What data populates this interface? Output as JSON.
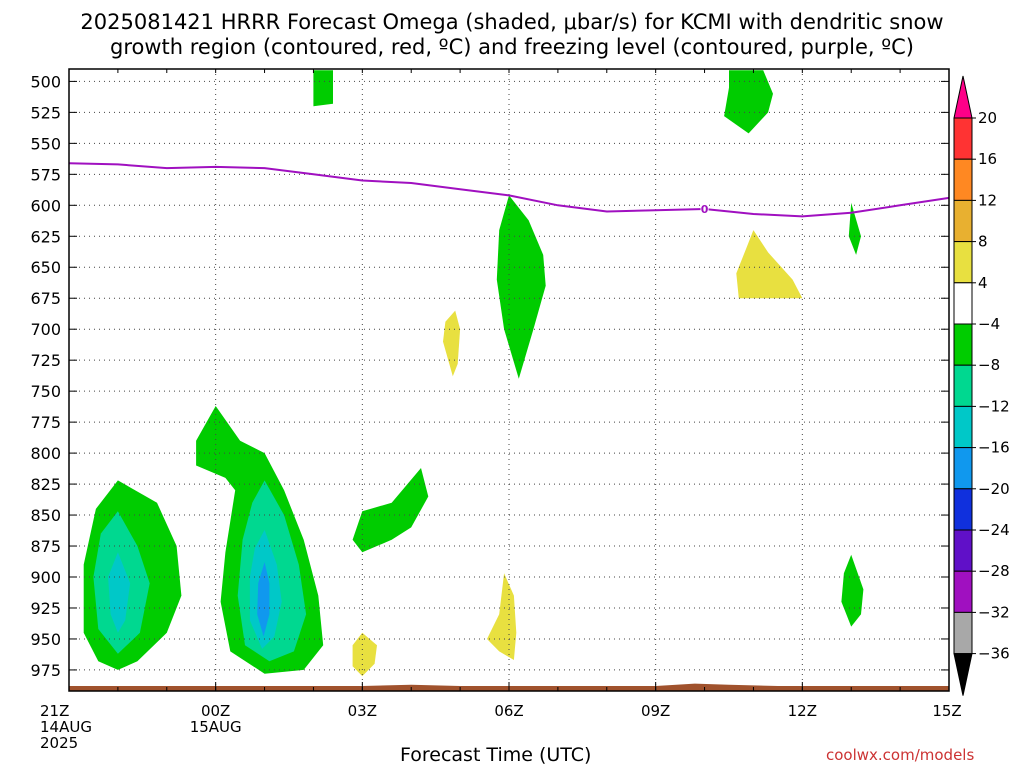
{
  "title_line1": "2025081421 HRRR Forecast Omega (shaded, μbar/s) for KCMI with dendritic snow",
  "title_line2": "growth region (contoured, red, ºC) and freezing level (contoured, purple, ºC)",
  "xlabel": "Forecast Time (UTC)",
  "watermark": "coolwx.com/models",
  "chart_data": {
    "type": "time-height contour",
    "title": "2025081421 HRRR Forecast Omega (shaded, μbar/s) for KCMI with dendritic snow growth region (contoured, red, ºC) and freezing level (contoured, purple, ºC)",
    "xlabel": "Forecast Time (UTC)",
    "y_ticks": [
      500,
      525,
      550,
      575,
      600,
      625,
      650,
      675,
      700,
      725,
      750,
      775,
      800,
      825,
      850,
      875,
      900,
      925,
      950,
      975
    ],
    "x_ticks": [
      {
        "hour": 0,
        "lines": [
          "21Z",
          "14AUG",
          "2025"
        ]
      },
      {
        "hour": 3,
        "lines": [
          "00Z",
          "15AUG"
        ]
      },
      {
        "hour": 6,
        "lines": [
          "03Z"
        ]
      },
      {
        "hour": 9,
        "lines": [
          "06Z"
        ]
      },
      {
        "hour": 12,
        "lines": [
          "09Z"
        ]
      },
      {
        "hour": 15,
        "lines": [
          "12Z"
        ]
      },
      {
        "hour": 18,
        "lines": [
          "15Z"
        ]
      }
    ],
    "x_range_hours": [
      0,
      18
    ],
    "y_range_hpa": [
      490,
      992
    ],
    "grid": true,
    "colorbar": {
      "labels": [
        "20",
        "16",
        "12",
        "8",
        "4",
        "-4",
        "-8",
        "-12",
        "-16",
        "-20",
        "-24",
        "-28",
        "-32",
        "-36"
      ],
      "colors": [
        "#ff0088",
        "#ff3333",
        "#ff8822",
        "#e8b030",
        "#e8e040",
        "#ffffff",
        "#00cc00",
        "#00d890",
        "#00c8c8",
        "#1098ee",
        "#1030dd",
        "#6010c8",
        "#a010c0",
        "#a8a8a8",
        "#000000"
      ]
    },
    "freezing_level": {
      "label": "0",
      "points": [
        [
          0,
          566
        ],
        [
          1,
          567
        ],
        [
          2,
          570
        ],
        [
          3,
          569
        ],
        [
          4,
          570
        ],
        [
          5,
          575
        ],
        [
          6,
          580
        ],
        [
          7,
          582
        ],
        [
          8,
          587
        ],
        [
          9,
          592
        ],
        [
          10,
          600
        ],
        [
          11,
          605
        ],
        [
          12,
          604
        ],
        [
          13,
          603
        ],
        [
          14,
          607
        ],
        [
          15,
          609
        ],
        [
          16,
          606
        ],
        [
          17,
          600
        ],
        [
          18,
          594
        ]
      ]
    },
    "omega_regions": [
      {
        "level": "-4 to -8",
        "points": [
          [
            5,
            491
          ],
          [
            5.4,
            491
          ],
          [
            5.4,
            518
          ],
          [
            5,
            520
          ]
        ]
      },
      {
        "level": "-4 to -8",
        "points": [
          [
            13.5,
            491
          ],
          [
            14.2,
            491
          ],
          [
            14.4,
            510
          ],
          [
            14.3,
            525
          ],
          [
            13.9,
            542
          ],
          [
            13.4,
            528
          ],
          [
            13.5,
            505
          ]
        ]
      },
      {
        "level": "-4 to -8",
        "points": [
          [
            9,
            592
          ],
          [
            9.4,
            612
          ],
          [
            9.7,
            640
          ],
          [
            9.75,
            665
          ],
          [
            9.5,
            700
          ],
          [
            9.2,
            740
          ],
          [
            8.9,
            700
          ],
          [
            8.75,
            660
          ],
          [
            8.8,
            620
          ]
        ]
      },
      {
        "level": "-4 to -8",
        "points": [
          [
            16,
            598
          ],
          [
            16.2,
            625
          ],
          [
            16.1,
            640
          ],
          [
            15.95,
            625
          ]
        ]
      },
      {
        "level": "4 to 8",
        "points": [
          [
            14,
            620
          ],
          [
            14.3,
            638
          ],
          [
            14.8,
            660
          ],
          [
            15,
            675
          ],
          [
            13.7,
            675
          ],
          [
            13.65,
            655
          ],
          [
            13.85,
            635
          ]
        ]
      },
      {
        "level": "4 to 8",
        "points": [
          [
            7.9,
            685
          ],
          [
            8.0,
            700
          ],
          [
            7.95,
            728
          ],
          [
            7.85,
            738
          ],
          [
            7.65,
            710
          ],
          [
            7.7,
            694
          ]
        ]
      },
      {
        "level": "4 to 8",
        "points": [
          [
            8.9,
            897
          ],
          [
            9.1,
            915
          ],
          [
            9.15,
            945
          ],
          [
            9.1,
            967
          ],
          [
            8.8,
            960
          ],
          [
            8.55,
            950
          ],
          [
            8.8,
            930
          ]
        ]
      },
      {
        "level": "4 to 8",
        "points": [
          [
            6,
            945
          ],
          [
            6.3,
            955
          ],
          [
            6.25,
            970
          ],
          [
            6.0,
            980
          ],
          [
            5.8,
            972
          ],
          [
            5.8,
            955
          ]
        ]
      },
      {
        "level": "-4 to -8",
        "points": [
          [
            7.2,
            812
          ],
          [
            7.35,
            835
          ],
          [
            7.0,
            860
          ],
          [
            6.6,
            870
          ],
          [
            6.0,
            880
          ],
          [
            5.8,
            870
          ],
          [
            6.0,
            847
          ],
          [
            6.6,
            840
          ]
        ]
      },
      {
        "level": "-4 to -8",
        "points": [
          [
            16,
            882
          ],
          [
            16.25,
            910
          ],
          [
            16.2,
            930
          ],
          [
            16,
            940
          ],
          [
            15.8,
            920
          ],
          [
            15.85,
            897
          ]
        ]
      },
      {
        "level": "-4 to -8",
        "points": [
          [
            1,
            822
          ],
          [
            1.8,
            840
          ],
          [
            2.2,
            875
          ],
          [
            2.3,
            915
          ],
          [
            2.0,
            945
          ],
          [
            1.4,
            968
          ],
          [
            1,
            975
          ],
          [
            0.6,
            968
          ],
          [
            0.3,
            945
          ],
          [
            0.3,
            890
          ],
          [
            0.55,
            845
          ]
        ]
      },
      {
        "level": "-8 to -12",
        "points": [
          [
            1,
            847
          ],
          [
            1.4,
            875
          ],
          [
            1.65,
            905
          ],
          [
            1.45,
            945
          ],
          [
            1,
            962
          ],
          [
            0.6,
            942
          ],
          [
            0.5,
            900
          ],
          [
            0.65,
            865
          ]
        ]
      },
      {
        "level": "-12 to -16",
        "points": [
          [
            1,
            880
          ],
          [
            1.25,
            905
          ],
          [
            1.15,
            935
          ],
          [
            1,
            945
          ],
          [
            0.85,
            930
          ],
          [
            0.8,
            900
          ]
        ]
      },
      {
        "level": "-4 to -8",
        "points": [
          [
            3,
            762
          ],
          [
            3.5,
            790
          ],
          [
            4.0,
            800
          ],
          [
            4.4,
            830
          ],
          [
            4.8,
            870
          ],
          [
            5.1,
            915
          ],
          [
            5.2,
            955
          ],
          [
            4.8,
            975
          ],
          [
            4.0,
            978
          ],
          [
            3.3,
            960
          ],
          [
            3.1,
            920
          ],
          [
            3.2,
            880
          ],
          [
            3.4,
            830
          ],
          [
            3.2,
            820
          ],
          [
            2.6,
            810
          ],
          [
            2.6,
            790
          ]
        ]
      },
      {
        "level": "-8 to -12",
        "points": [
          [
            4,
            822
          ],
          [
            4.4,
            850
          ],
          [
            4.7,
            890
          ],
          [
            4.85,
            930
          ],
          [
            4.6,
            960
          ],
          [
            4.1,
            968
          ],
          [
            3.6,
            955
          ],
          [
            3.45,
            915
          ],
          [
            3.55,
            870
          ],
          [
            3.75,
            840
          ]
        ]
      },
      {
        "level": "-12 to -16",
        "points": [
          [
            4,
            862
          ],
          [
            4.25,
            890
          ],
          [
            4.35,
            920
          ],
          [
            4.2,
            948
          ],
          [
            3.95,
            958
          ],
          [
            3.7,
            935
          ],
          [
            3.7,
            900
          ],
          [
            3.8,
            877
          ]
        ]
      },
      {
        "level": "-16 to -20",
        "points": [
          [
            4,
            888
          ],
          [
            4.1,
            905
          ],
          [
            4.1,
            930
          ],
          [
            3.98,
            948
          ],
          [
            3.85,
            930
          ],
          [
            3.87,
            905
          ]
        ]
      }
    ],
    "terrain": [
      [
        0,
        988
      ],
      [
        3,
        988
      ],
      [
        6,
        988
      ],
      [
        7,
        987
      ],
      [
        8,
        988
      ],
      [
        12,
        988
      ],
      [
        12.8,
        986
      ],
      [
        13.5,
        987
      ],
      [
        14.5,
        988
      ],
      [
        18,
        988
      ]
    ]
  }
}
